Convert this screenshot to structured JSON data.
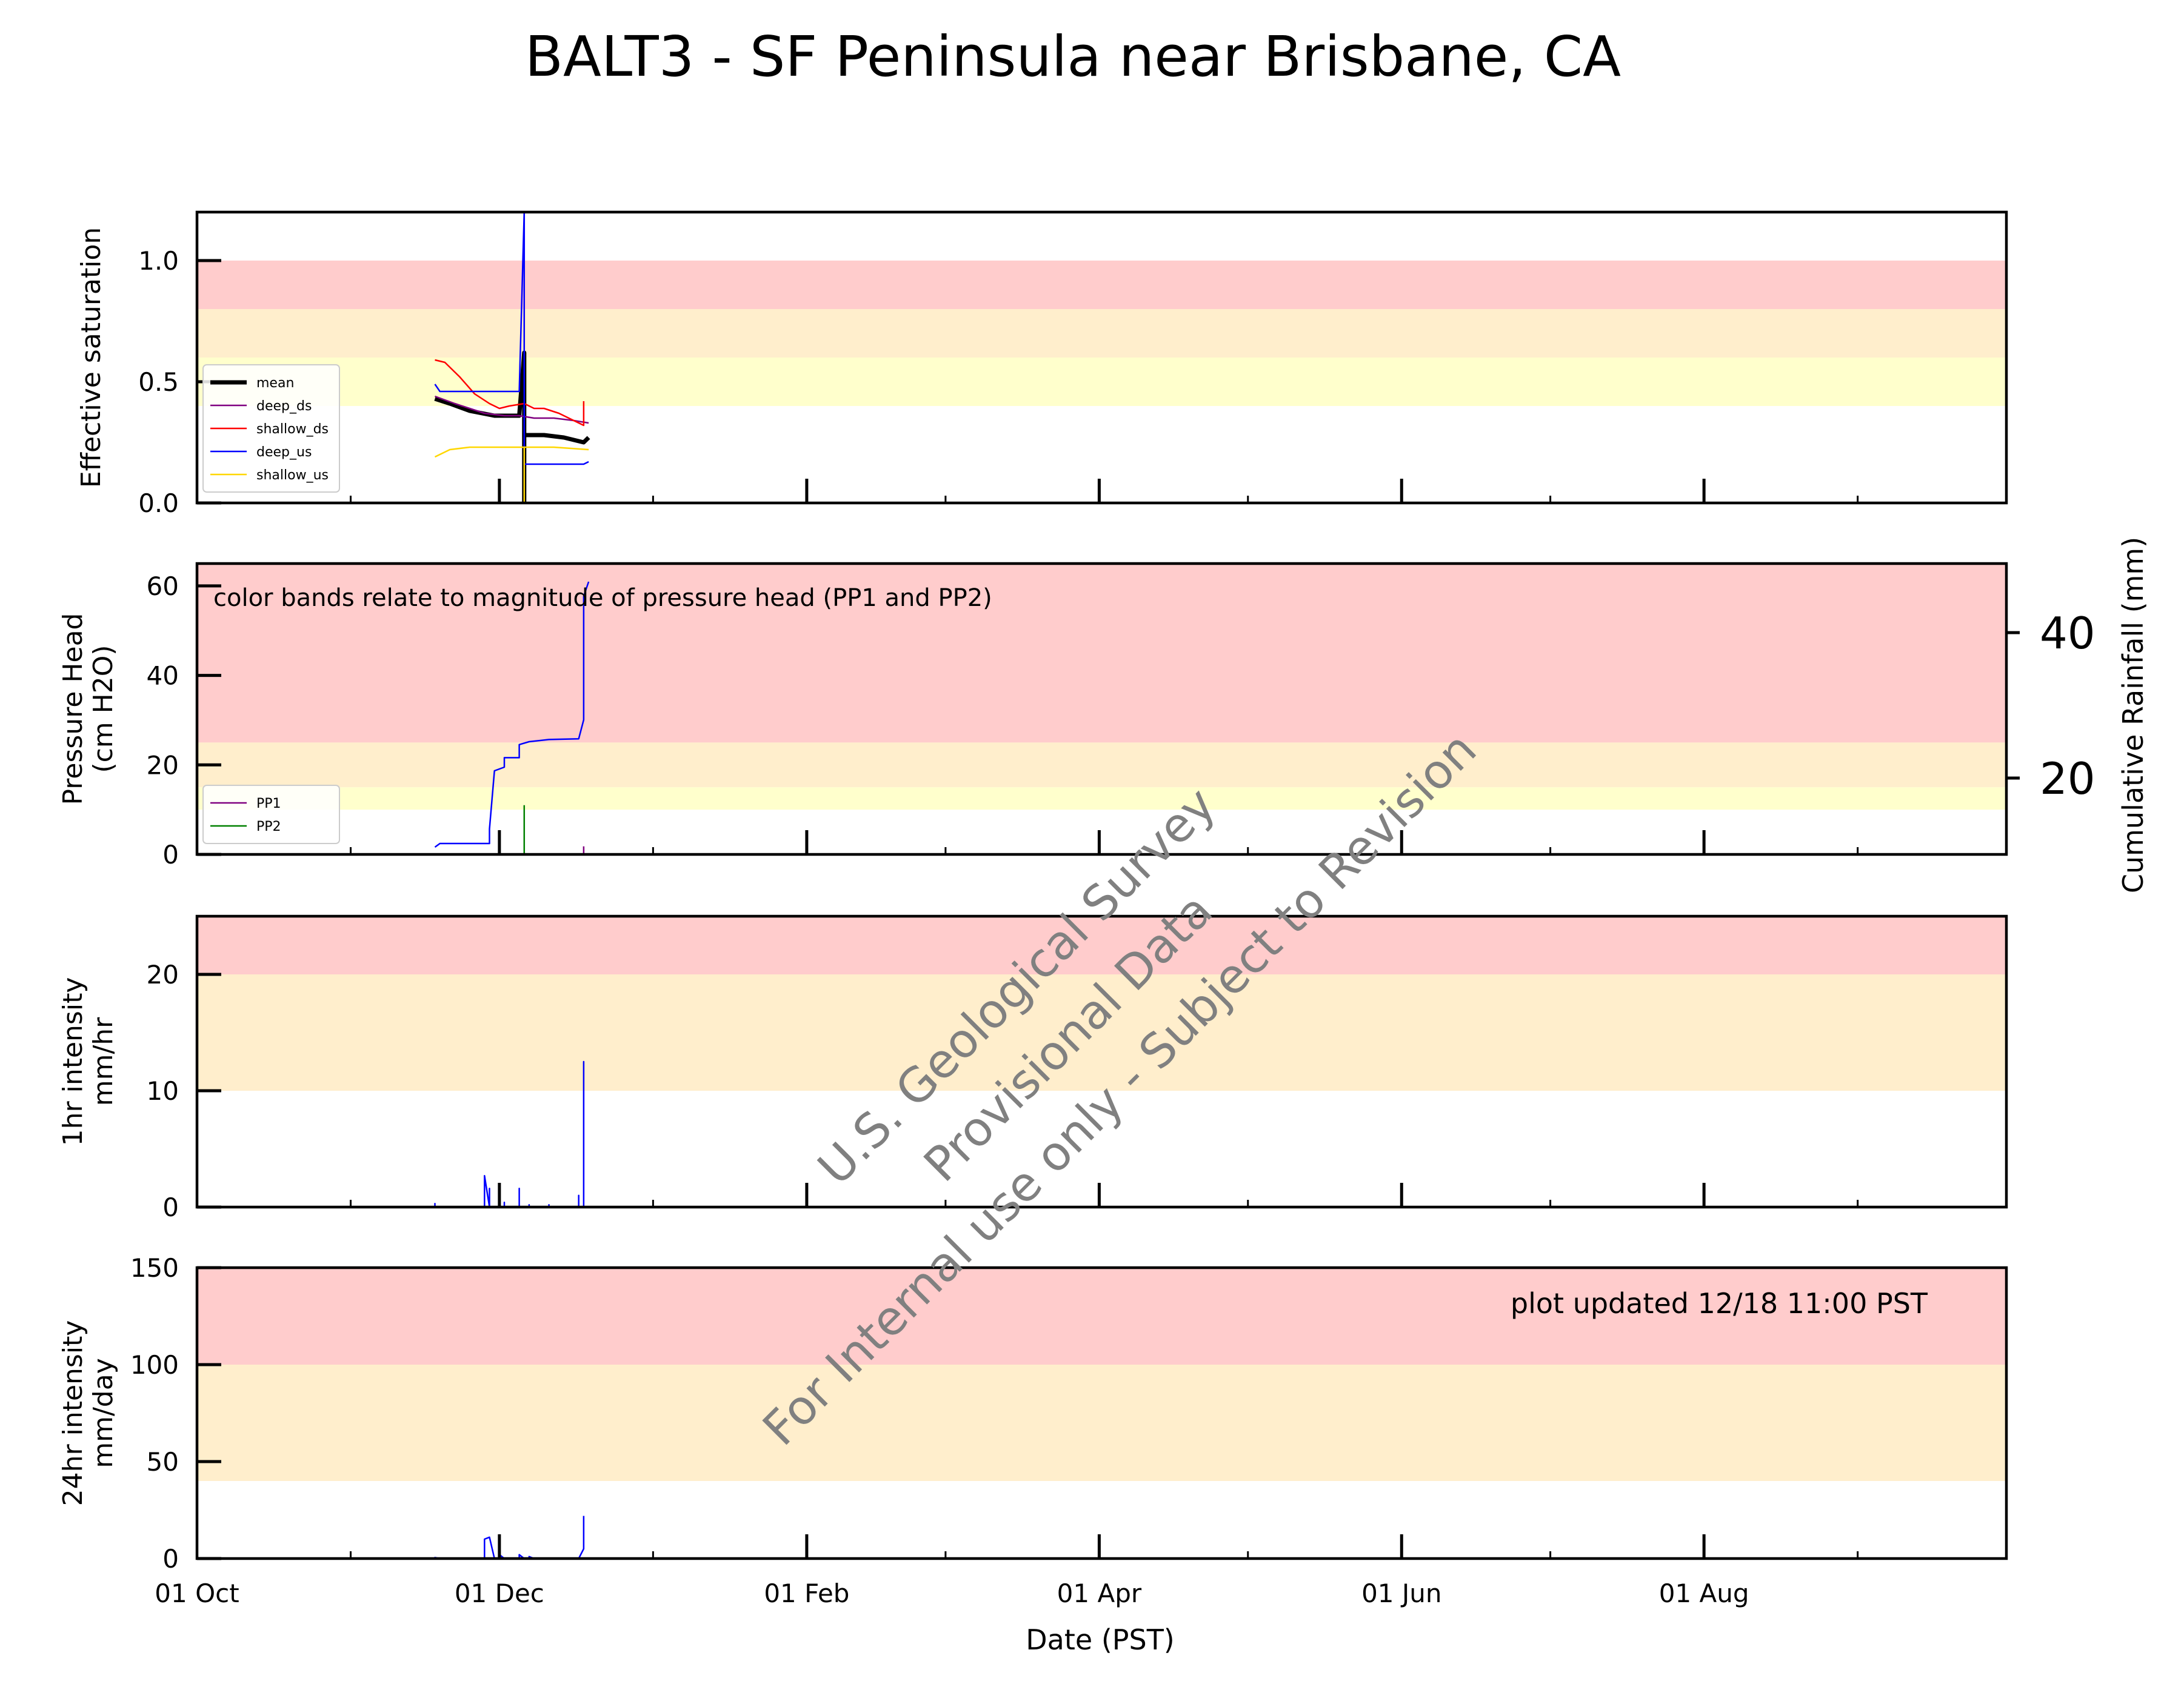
{
  "title": "BALT3 - SF Peninsula near Brisbane, CA",
  "x_axis": {
    "label": "Date (PST)",
    "range": [
      "2024-10-01",
      "2025-10-01"
    ],
    "ticks": [
      {
        "date": "2024-10-01",
        "label": "01 Oct"
      },
      {
        "date": "2024-12-01",
        "label": "01 Dec"
      },
      {
        "date": "2025-02-01",
        "label": "01 Feb"
      },
      {
        "date": "2025-04-01",
        "label": "01 Apr"
      },
      {
        "date": "2025-06-01",
        "label": "01 Jun"
      },
      {
        "date": "2025-08-01",
        "label": "01 Aug"
      }
    ],
    "minor_ticks": [
      "2024-11-01",
      "2025-01-01",
      "2025-03-01",
      "2025-05-01",
      "2025-07-01",
      "2025-09-01"
    ]
  },
  "watermark": {
    "lines": [
      "U.S. Geological Survey",
      "Provisional Data",
      "For Internal use only - Subject to Revision"
    ],
    "color": "#808080"
  },
  "colors": {
    "red_band": "#ffcccc",
    "orange_band": "#ffeecc",
    "yellow_band": "#ffffcc"
  },
  "chart_data": [
    {
      "id": "saturation",
      "type": "line",
      "ylabel": [
        "Effective saturation"
      ],
      "ylim": [
        0,
        1.2
      ],
      "yticks": [
        {
          "value": 0,
          "label": "0.0"
        },
        {
          "value": 0.5,
          "label": "0.5"
        },
        {
          "value": 1.0,
          "label": "1.0"
        }
      ],
      "bands": [
        {
          "from": 0.8,
          "to": 1.0,
          "color": "#ffcccc"
        },
        {
          "from": 0.6,
          "to": 0.8,
          "color": "#ffeecc"
        },
        {
          "from": 0.4,
          "to": 0.6,
          "color": "#ffffcc"
        }
      ],
      "legend": {
        "position": "lower-left"
      },
      "series": [
        {
          "name": "mean",
          "color": "#000000",
          "width": 7,
          "points": [
            [
              "2024-11-18",
              0.43
            ],
            [
              "2024-11-21",
              0.41
            ],
            [
              "2024-11-25",
              0.38
            ],
            [
              "2024-11-30",
              0.36
            ],
            [
              "2024-12-03",
              0.36
            ],
            [
              "2024-12-05",
              0.36
            ],
            [
              "2024-12-06",
              0.62
            ],
            [
              "2024-12-06",
              0.0
            ],
            [
              "2024-12-06",
              0.28
            ],
            [
              "2024-12-10",
              0.28
            ],
            [
              "2024-12-14",
              0.27
            ],
            [
              "2024-12-18",
              0.25
            ],
            [
              "2024-12-19",
              0.27
            ]
          ]
        },
        {
          "name": "deep_ds",
          "color": "#800080",
          "width": 2.5,
          "points": [
            [
              "2024-11-18",
              0.44
            ],
            [
              "2024-11-22",
              0.41
            ],
            [
              "2024-11-28",
              0.37
            ],
            [
              "2024-12-02",
              0.36
            ],
            [
              "2024-12-05",
              0.36
            ],
            [
              "2024-12-08",
              0.35
            ],
            [
              "2024-12-12",
              0.35
            ],
            [
              "2024-12-16",
              0.34
            ],
            [
              "2024-12-19",
              0.33
            ]
          ]
        },
        {
          "name": "shallow_ds",
          "color": "#ff0000",
          "width": 2.5,
          "points": [
            [
              "2024-11-18",
              0.59
            ],
            [
              "2024-11-20",
              0.58
            ],
            [
              "2024-11-23",
              0.52
            ],
            [
              "2024-11-26",
              0.45
            ],
            [
              "2024-11-29",
              0.41
            ],
            [
              "2024-12-01",
              0.39
            ],
            [
              "2024-12-03",
              0.4
            ],
            [
              "2024-12-06",
              0.41
            ],
            [
              "2024-12-08",
              0.39
            ],
            [
              "2024-12-10",
              0.39
            ],
            [
              "2024-12-13",
              0.37
            ],
            [
              "2024-12-16",
              0.34
            ],
            [
              "2024-12-18",
              0.32
            ],
            [
              "2024-12-18",
              0.42
            ]
          ]
        },
        {
          "name": "deep_us",
          "color": "#0000ff",
          "width": 2.5,
          "points": [
            [
              "2024-11-18",
              0.49
            ],
            [
              "2024-11-19",
              0.46
            ],
            [
              "2024-12-05",
              0.46
            ],
            [
              "2024-12-06",
              1.2
            ],
            [
              "2024-12-06",
              0.0
            ],
            [
              "2024-12-06",
              0.16
            ],
            [
              "2024-12-18",
              0.16
            ],
            [
              "2024-12-19",
              0.17
            ]
          ]
        },
        {
          "name": "shallow_us",
          "color": "#ffd700",
          "width": 2.5,
          "points": [
            [
              "2024-11-18",
              0.19
            ],
            [
              "2024-11-21",
              0.22
            ],
            [
              "2024-11-25",
              0.23
            ],
            [
              "2024-12-06",
              0.23
            ],
            [
              "2024-12-06",
              0.0
            ],
            [
              "2024-12-06",
              0.23
            ],
            [
              "2024-12-12",
              0.23
            ],
            [
              "2024-12-19",
              0.22
            ]
          ]
        }
      ]
    },
    {
      "id": "pressure",
      "type": "line",
      "ylabel": [
        "Pressure Head",
        "(cm H2O)"
      ],
      "ylim": [
        0,
        65
      ],
      "yticks": [
        {
          "value": 0,
          "label": "0"
        },
        {
          "value": 20,
          "label": "20"
        },
        {
          "value": 40,
          "label": "40"
        },
        {
          "value": 60,
          "label": "60"
        }
      ],
      "bands": [
        {
          "from": 25,
          "to": 65,
          "color": "#ffcccc"
        },
        {
          "from": 15,
          "to": 25,
          "color": "#ffeecc"
        },
        {
          "from": 10,
          "to": 15,
          "color": "#ffffcc"
        }
      ],
      "annotation": "color bands relate to magnitude of pressure head (PP1 and PP2)",
      "legend": {
        "position": "lower-left"
      },
      "secondary_axis": {
        "label": "Cumulative Rainfall (mm)",
        "ylim": [
          9.5,
          49.5
        ],
        "yticks": [
          {
            "value": 20,
            "label": "20"
          },
          {
            "value": 40,
            "label": "40"
          }
        ]
      },
      "series": [
        {
          "name": "PP1",
          "color": "#800080",
          "width": 2.5,
          "points": [
            [
              "2024-12-18",
              0
            ],
            [
              "2024-12-18",
              1.8
            ]
          ]
        },
        {
          "name": "PP2",
          "color": "#008000",
          "width": 2.5,
          "points": [
            [
              "2024-12-06",
              0
            ],
            [
              "2024-12-06",
              11
            ]
          ]
        }
      ],
      "rainfall_series": {
        "color": "#0000ff",
        "width": 2.5,
        "axis": "secondary",
        "points": [
          [
            "2024-11-18",
            10.5
          ],
          [
            "2024-11-19",
            11.0
          ],
          [
            "2024-11-29",
            11.0
          ],
          [
            "2024-11-29",
            13.0
          ],
          [
            "2024-11-30",
            21.0
          ],
          [
            "2024-12-02",
            21.5
          ],
          [
            "2024-12-02",
            22.8
          ],
          [
            "2024-12-05",
            22.8
          ],
          [
            "2024-12-05",
            24.6
          ],
          [
            "2024-12-07",
            25.0
          ],
          [
            "2024-12-11",
            25.3
          ],
          [
            "2024-12-17",
            25.4
          ],
          [
            "2024-12-18",
            28.0
          ],
          [
            "2024-12-18",
            45.0
          ],
          [
            "2024-12-19",
            47.0
          ]
        ]
      }
    },
    {
      "id": "intensity_1hr",
      "type": "line",
      "ylabel": [
        "1hr intensity",
        "mm/hr"
      ],
      "ylim": [
        0,
        25
      ],
      "yticks": [
        {
          "value": 0,
          "label": "0"
        },
        {
          "value": 10,
          "label": "10"
        },
        {
          "value": 20,
          "label": "20"
        }
      ],
      "bands": [
        {
          "from": 20,
          "to": 25,
          "color": "#ffcccc"
        },
        {
          "from": 10,
          "to": 20,
          "color": "#ffeecc"
        }
      ],
      "series": [
        {
          "name": "",
          "color": "#0000ff",
          "width": 2.5,
          "points": [
            [
              "2024-11-18",
              0
            ],
            [
              "2024-11-18",
              0.3
            ],
            [
              "2024-11-18",
              0
            ],
            [
              "2024-11-28",
              0
            ],
            [
              "2024-11-28",
              2.7
            ],
            [
              "2024-11-29",
              0
            ],
            [
              "2024-11-29",
              1.6
            ],
            [
              "2024-11-29",
              0
            ],
            [
              "2024-12-01",
              0
            ],
            [
              "2024-12-01",
              2.0
            ],
            [
              "2024-12-01",
              0
            ],
            [
              "2024-12-02",
              0
            ],
            [
              "2024-12-02",
              0.4
            ],
            [
              "2024-12-02",
              0
            ],
            [
              "2024-12-05",
              0
            ],
            [
              "2024-12-05",
              1.6
            ],
            [
              "2024-12-05",
              0
            ],
            [
              "2024-12-07",
              0
            ],
            [
              "2024-12-07",
              0.2
            ],
            [
              "2024-12-07",
              0
            ],
            [
              "2024-12-11",
              0
            ],
            [
              "2024-12-11",
              0.2
            ],
            [
              "2024-12-11",
              0
            ],
            [
              "2024-12-17",
              0
            ],
            [
              "2024-12-17",
              1.0
            ],
            [
              "2024-12-17",
              0
            ],
            [
              "2024-12-18",
              0
            ],
            [
              "2024-12-18",
              12.5
            ],
            [
              "2024-12-18",
              0
            ],
            [
              "2024-12-19",
              0
            ]
          ]
        }
      ]
    },
    {
      "id": "intensity_24hr",
      "type": "line",
      "ylabel": [
        "24hr intensity",
        "mm/day"
      ],
      "ylim": [
        0,
        150
      ],
      "yticks": [
        {
          "value": 0,
          "label": "0"
        },
        {
          "value": 50,
          "label": "50"
        },
        {
          "value": 100,
          "label": "100"
        },
        {
          "value": 150,
          "label": "150"
        }
      ],
      "bands": [
        {
          "from": 100,
          "to": 150,
          "color": "#ffcccc"
        },
        {
          "from": 40,
          "to": 100,
          "color": "#ffeecc"
        }
      ],
      "annotation": "plot updated 12/18 11:00  PST",
      "series": [
        {
          "name": "",
          "color": "#0000ff",
          "width": 2.5,
          "points": [
            [
              "2024-11-18",
              0
            ],
            [
              "2024-11-18",
              0.5
            ],
            [
              "2024-11-19",
              0
            ],
            [
              "2024-11-28",
              0
            ],
            [
              "2024-11-28",
              10
            ],
            [
              "2024-11-29",
              11
            ],
            [
              "2024-11-30",
              0
            ],
            [
              "2024-12-01",
              0
            ],
            [
              "2024-12-01",
              12
            ],
            [
              "2024-12-01",
              2
            ],
            [
              "2024-12-02",
              0
            ],
            [
              "2024-12-05",
              0
            ],
            [
              "2024-12-05",
              2
            ],
            [
              "2024-12-06",
              0
            ],
            [
              "2024-12-07",
              0
            ],
            [
              "2024-12-07",
              1
            ],
            [
              "2024-12-08",
              0
            ],
            [
              "2024-12-17",
              0
            ],
            [
              "2024-12-18",
              5
            ],
            [
              "2024-12-18",
              22
            ]
          ]
        }
      ]
    }
  ]
}
